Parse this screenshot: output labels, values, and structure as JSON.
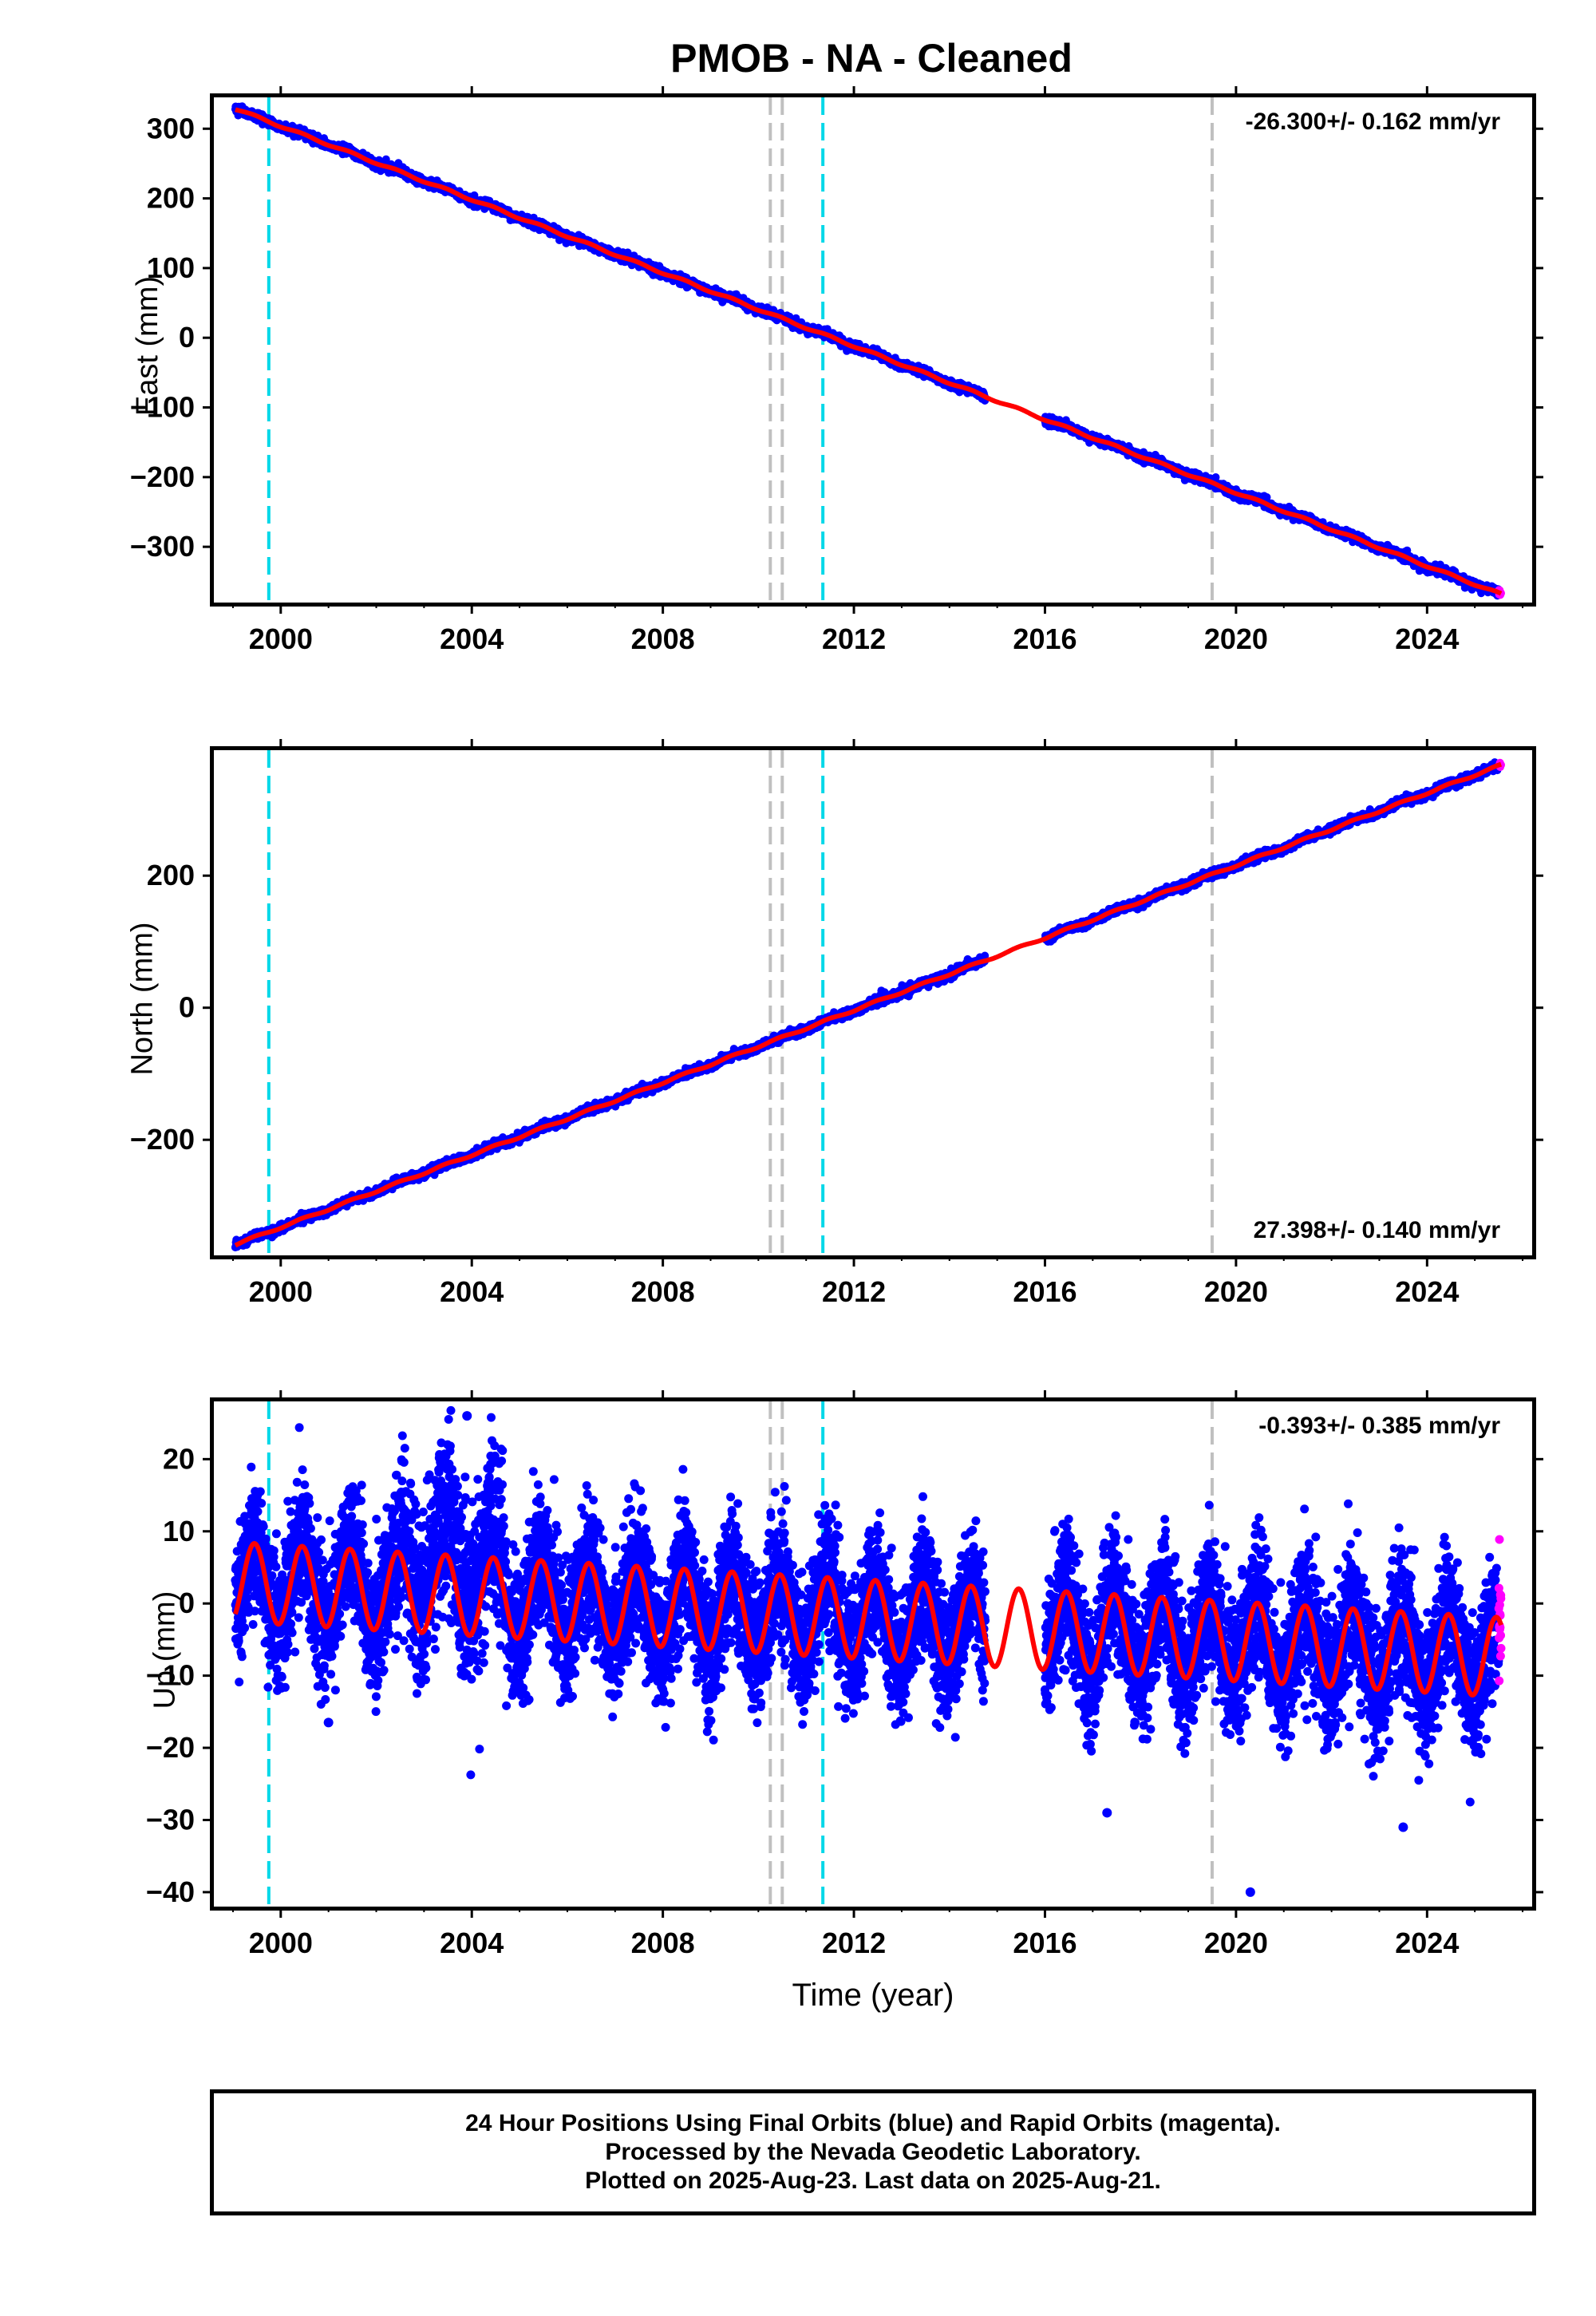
{
  "title": "PMOB  - NA - Cleaned",
  "x_axis_label": "Time (year)",
  "footer": {
    "line1": "24 Hour Positions Using Final Orbits (blue) and Rapid Orbits (magenta).",
    "line2": "Processed by the Nevada Geodetic Laboratory.",
    "line3": "Plotted on 2025-Aug-23. Last data on 2025-Aug-21."
  },
  "colors": {
    "final_orbits": "#0000ff",
    "rapid_orbits": "#ff00ff",
    "model_fit": "#ff0000",
    "event_cyan": "#00d8e8",
    "event_gray": "#c0c0c0"
  },
  "chart_data": [
    {
      "type": "scatter",
      "name": "east",
      "ylabel": "East (mm)",
      "rate_text": "-26.300+/- 0.162 mm/yr",
      "xlim": [
        1998.6,
        2026.2
      ],
      "ylim": [
        -380,
        345
      ],
      "xticks": [
        2000,
        2004,
        2008,
        2012,
        2016,
        2020,
        2024
      ],
      "yticks": [
        300,
        200,
        100,
        0,
        -100,
        -200,
        -300
      ],
      "ytick_labels": [
        "300",
        "200",
        "100",
        "0",
        "−100",
        "−200",
        "−300"
      ],
      "data_span": [
        1999.05,
        2025.55
      ],
      "gap": [
        2014.75,
        2016.0
      ],
      "rapid_start": 2025.5,
      "fit": {
        "y_at_1999": 330,
        "rate_mm_per_yr": -26.3,
        "seasonal_amplitude": 1.5
      },
      "noise_sd": 3,
      "events_cyan": [
        1999.75,
        2011.35
      ],
      "events_gray": [
        2010.25,
        2010.5,
        2019.5
      ]
    },
    {
      "type": "scatter",
      "name": "north",
      "ylabel": "North (mm)",
      "rate_text": "27.398+/- 0.140 mm/yr",
      "xlim": [
        1998.6,
        2026.2
      ],
      "ylim": [
        -375,
        390
      ],
      "xticks": [
        2000,
        2004,
        2008,
        2012,
        2016,
        2020,
        2024
      ],
      "yticks": [
        200,
        0,
        -200
      ],
      "ytick_labels": [
        "200",
        "0",
        "−200"
      ],
      "data_span": [
        1999.05,
        2025.55
      ],
      "gap": [
        2014.75,
        2016.0
      ],
      "rapid_start": 2025.5,
      "fit": {
        "y_at_1999": -360,
        "rate_mm_per_yr": 27.4,
        "seasonal_amplitude": 1.5
      },
      "noise_sd": 3,
      "events_cyan": [
        1999.75,
        2011.35
      ],
      "events_gray": [
        2010.25,
        2010.5,
        2019.5
      ]
    },
    {
      "type": "scatter",
      "name": "up",
      "ylabel": "Up (mm)",
      "rate_text": "-0.393+/- 0.385 mm/yr",
      "xlim": [
        1998.6,
        2026.2
      ],
      "ylim": [
        -42,
        28
      ],
      "xticks": [
        2000,
        2004,
        2008,
        2012,
        2016,
        2020,
        2024
      ],
      "yticks": [
        20,
        10,
        0,
        -10,
        -20,
        -30,
        -40
      ],
      "ytick_labels": [
        "20",
        "10",
        "0",
        "−10",
        "−20",
        "−30",
        "−40"
      ],
      "data_span": [
        1999.05,
        2025.55
      ],
      "gap": [
        2014.75,
        2016.0
      ],
      "rapid_start": 2025.5,
      "fit": {
        "y_at_1999": 3,
        "rate_mm_per_yr": -0.393,
        "seasonal_amplitude": 5.5
      },
      "noise_sd": 4.5,
      "outliers": [
        [
          2003.9,
          26
        ],
        [
          2017.3,
          -29
        ],
        [
          2020.3,
          -40
        ],
        [
          2023.5,
          -31
        ],
        [
          2001.0,
          -16.5
        ]
      ],
      "events_cyan": [
        1999.75,
        2011.35
      ],
      "events_gray": [
        2010.25,
        2010.5,
        2019.5
      ]
    }
  ]
}
